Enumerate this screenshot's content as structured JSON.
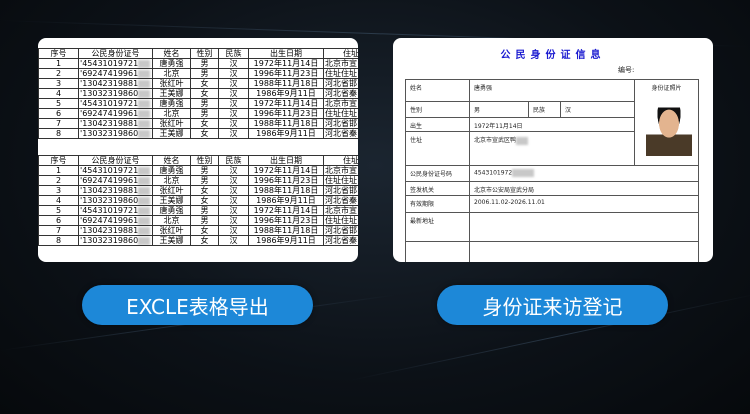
{
  "excel": {
    "headers": [
      "序号",
      "公民身份证号",
      "姓名",
      "性别",
      "民族",
      "出生日期",
      "住址"
    ],
    "rows": [
      [
        "1",
        "'45431019721",
        "唐勇强",
        "男",
        "汉",
        "1972年11月14日",
        "北京市宣"
      ],
      [
        "2",
        "'69247419961",
        "北京",
        "男",
        "汉",
        "1996年11月23日",
        "住址住址"
      ],
      [
        "3",
        "'13042319881",
        "张红叶",
        "女",
        "汉",
        "1988年11月18日",
        "河北省邯"
      ],
      [
        "4",
        "'13032319860",
        "王美娜",
        "女",
        "汉",
        "1986年9月11日",
        "河北省秦"
      ],
      [
        "5",
        "'45431019721",
        "唐勇强",
        "男",
        "汉",
        "1972年11月14日",
        "北京市宣"
      ],
      [
        "6",
        "'69247419961",
        "北京",
        "男",
        "汉",
        "1996年11月23日",
        "住址住址"
      ],
      [
        "7",
        "'13042319881",
        "张红叶",
        "女",
        "汉",
        "1988年11月18日",
        "河北省邯"
      ],
      [
        "8",
        "'13032319860",
        "王美娜",
        "女",
        "汉",
        "1986年9月11日",
        "河北省秦"
      ]
    ]
  },
  "idcard": {
    "title": "公民身份证信息",
    "number_label": "编号:",
    "name_label": "姓名",
    "name": "唐勇强",
    "gender_label": "性别",
    "gender": "男",
    "ethnicity_label": "民族",
    "ethnicity": "汉",
    "birth_label": "出生",
    "birth": "1972年11月14日",
    "address_label": "住址",
    "address": "北京市宣武区鸭",
    "photo_label": "身份证照片",
    "id_label": "公民身份证号码",
    "id": "4543101972",
    "issuer_label": "签发机关",
    "issuer": "北京市公安局宣武分局",
    "validity_label": "有效期限",
    "validity": "2006.11.02-2026.11.01",
    "latest_address_label": "最新地址"
  },
  "buttons": {
    "excel_export": "EXCLE表格导出",
    "id_visit": "身份证来访登记"
  },
  "colors": {
    "button": "#1d88d8",
    "title": "#1a1ad0"
  }
}
